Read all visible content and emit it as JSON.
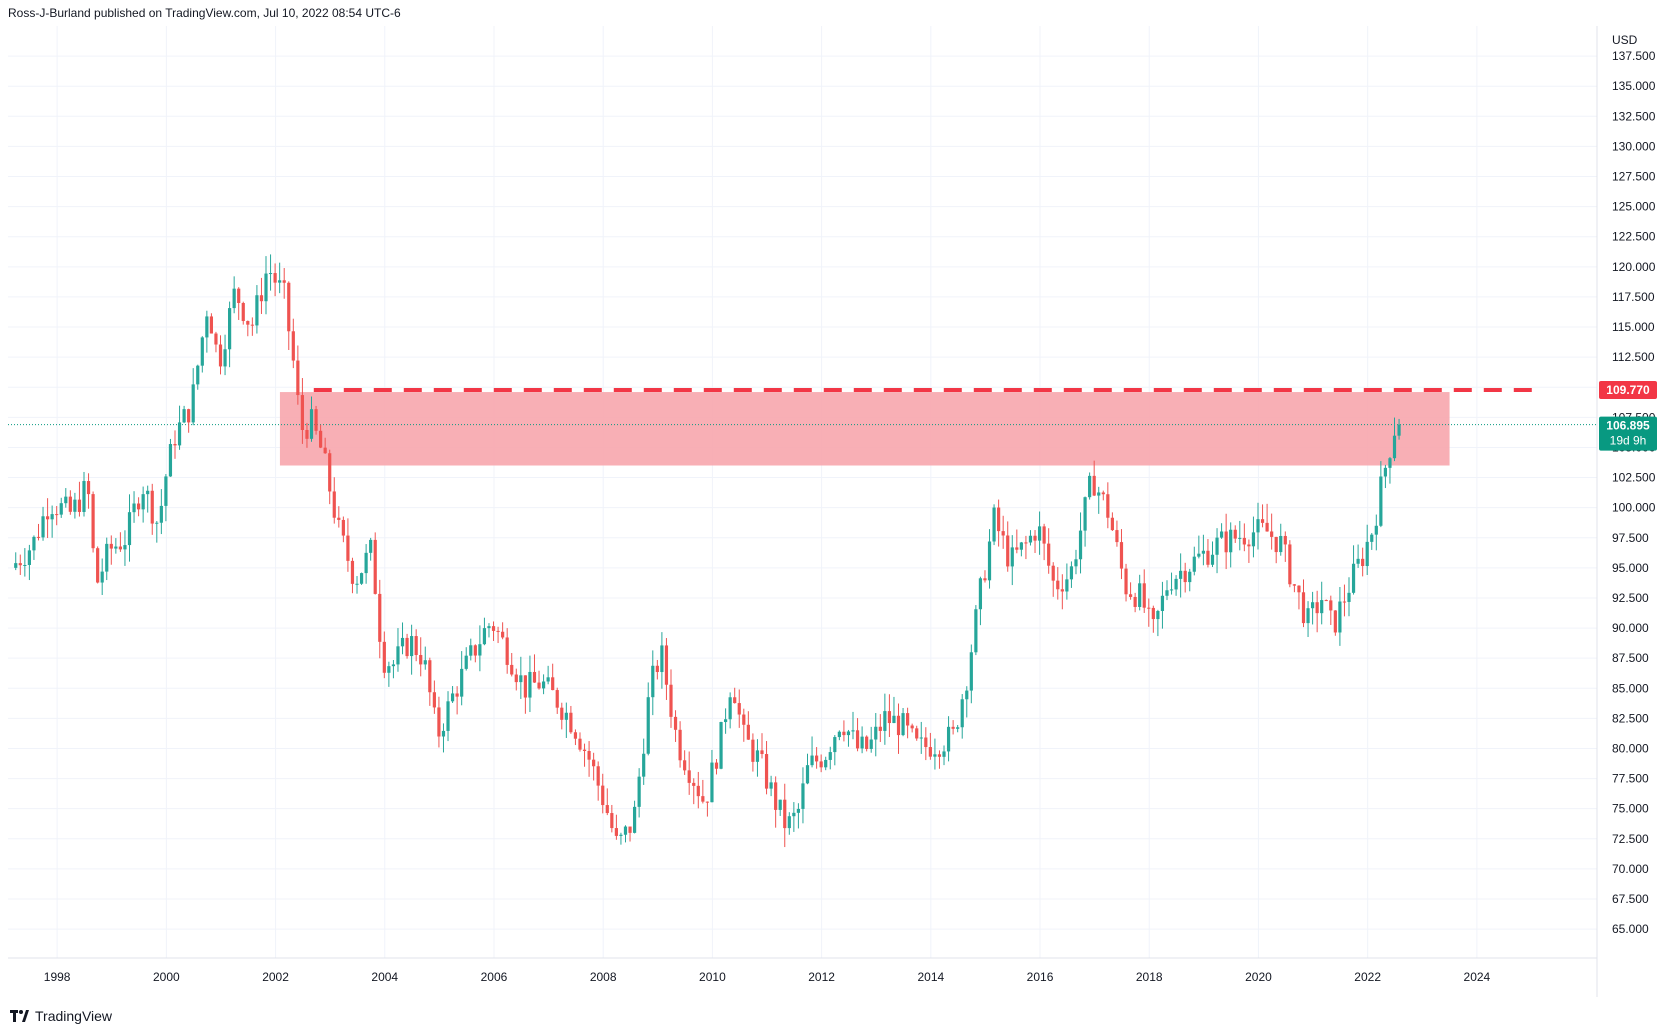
{
  "header": {
    "published_by": "Ross-J-Burland published on TradingView.com, Jul 10, 2022 08:54 UTC-6"
  },
  "footer": {
    "brand": "TradingView",
    "logo_icon": "tradingview-logo-icon"
  },
  "colors": {
    "up": "#26a69a",
    "down": "#ef5350",
    "zone_fill": "#f7a6ad",
    "dashed_line": "#f23645",
    "current_price_bg": "#089981",
    "grid": "#f0f3fa",
    "axis_text": "#131722"
  },
  "chart_data": {
    "type": "candlestick",
    "currency": "USD",
    "x_range": [
      1997.1,
      2026.2
    ],
    "y_range": [
      62.6,
      140
    ],
    "y_ticks": [
      "65.000",
      "67.500",
      "70.000",
      "72.500",
      "75.000",
      "77.500",
      "80.000",
      "82.500",
      "85.000",
      "87.500",
      "90.000",
      "92.500",
      "95.000",
      "97.500",
      "100.000",
      "102.500",
      "105.000",
      "107.500",
      "110.000",
      "112.500",
      "115.000",
      "117.500",
      "120.000",
      "122.500",
      "125.000",
      "127.500",
      "130.000",
      "132.500",
      "135.000",
      "137.500"
    ],
    "x_ticks": [
      "1998",
      "2000",
      "2002",
      "2004",
      "2006",
      "2008",
      "2010",
      "2012",
      "2014",
      "2016",
      "2018",
      "2020",
      "2022",
      "2024"
    ],
    "resistance_zone": {
      "from": 2002.08,
      "to": 2023.5,
      "low": 103.5,
      "high": 109.6
    },
    "resistance_level": {
      "value": 109.77,
      "label": "109.770",
      "from": 2002.7
    },
    "current_price": {
      "value": 106.895,
      "label": "106.895",
      "countdown": "19d 9h"
    },
    "anchors": [
      [
        1997.2,
        95.0
      ],
      [
        1997.6,
        97.0
      ],
      [
        1997.9,
        100.5
      ],
      [
        1998.3,
        99.5
      ],
      [
        1998.6,
        101.8
      ],
      [
        1998.75,
        93.5
      ],
      [
        1999.0,
        96.5
      ],
      [
        1999.3,
        97.5
      ],
      [
        1999.6,
        102.0
      ],
      [
        1999.9,
        98.5
      ],
      [
        2000.0,
        102.0
      ],
      [
        2000.2,
        106.0
      ],
      [
        2000.5,
        108.5
      ],
      [
        2000.8,
        117.0
      ],
      [
        2001.0,
        112.0
      ],
      [
        2001.3,
        118.0
      ],
      [
        2001.6,
        115.0
      ],
      [
        2001.9,
        120.0
      ],
      [
        2002.2,
        117.5
      ],
      [
        2002.4,
        111.0
      ],
      [
        2002.5,
        106.5
      ],
      [
        2002.7,
        107.0
      ],
      [
        2002.9,
        104.5
      ],
      [
        2003.2,
        98.0
      ],
      [
        2003.5,
        94.0
      ],
      [
        2003.8,
        96.5
      ],
      [
        2004.0,
        87.5
      ],
      [
        2004.2,
        87.0
      ],
      [
        2004.5,
        89.0
      ],
      [
        2004.75,
        87.5
      ],
      [
        2005.0,
        81.0
      ],
      [
        2005.3,
        84.5
      ],
      [
        2005.6,
        87.5
      ],
      [
        2005.9,
        90.0
      ],
      [
        2006.0,
        90.5
      ],
      [
        2006.3,
        88.0
      ],
      [
        2006.6,
        85.0
      ],
      [
        2006.9,
        85.5
      ],
      [
        2007.2,
        84.0
      ],
      [
        2007.5,
        82.0
      ],
      [
        2007.8,
        79.0
      ],
      [
        2008.1,
        75.0
      ],
      [
        2008.3,
        71.8
      ],
      [
        2008.6,
        74.0
      ],
      [
        2008.9,
        85.0
      ],
      [
        2009.1,
        88.0
      ],
      [
        2009.4,
        80.5
      ],
      [
        2009.7,
        77.5
      ],
      [
        2009.9,
        75.5
      ],
      [
        2010.2,
        81.0
      ],
      [
        2010.4,
        86.0
      ],
      [
        2010.6,
        81.0
      ],
      [
        2010.9,
        79.0
      ],
      [
        2011.2,
        75.5
      ],
      [
        2011.4,
        73.5
      ],
      [
        2011.6,
        74.5
      ],
      [
        2011.8,
        78.5
      ],
      [
        2012.1,
        79.5
      ],
      [
        2012.4,
        82.5
      ],
      [
        2012.7,
        80.0
      ],
      [
        2012.9,
        80.0
      ],
      [
        2013.2,
        82.5
      ],
      [
        2013.5,
        82.0
      ],
      [
        2013.8,
        80.0
      ],
      [
        2014.2,
        80.5
      ],
      [
        2014.45,
        81.0
      ],
      [
        2014.7,
        86.0
      ],
      [
        2014.95,
        93.0
      ],
      [
        2015.2,
        99.0
      ],
      [
        2015.5,
        95.5
      ],
      [
        2015.8,
        97.0
      ],
      [
        2016.0,
        98.5
      ],
      [
        2016.3,
        93.5
      ],
      [
        2016.6,
        94.5
      ],
      [
        2016.9,
        100.5
      ],
      [
        2017.0,
        102.5
      ],
      [
        2017.3,
        99.5
      ],
      [
        2017.6,
        93.5
      ],
      [
        2017.9,
        92.5
      ],
      [
        2018.1,
        89.5
      ],
      [
        2018.4,
        94.0
      ],
      [
        2018.7,
        95.0
      ],
      [
        2019.0,
        96.0
      ],
      [
        2019.3,
        97.0
      ],
      [
        2019.6,
        97.5
      ],
      [
        2019.9,
        98.0
      ],
      [
        2020.2,
        98.0
      ],
      [
        2020.45,
        97.0
      ],
      [
        2020.7,
        93.5
      ],
      [
        2020.95,
        90.5
      ],
      [
        2021.2,
        92.5
      ],
      [
        2021.4,
        90.0
      ],
      [
        2021.7,
        93.5
      ],
      [
        2021.95,
        96.0
      ],
      [
        2022.15,
        98.5
      ],
      [
        2022.3,
        102.0
      ],
      [
        2022.42,
        104.5
      ],
      [
        2022.55,
        106.9
      ]
    ]
  }
}
